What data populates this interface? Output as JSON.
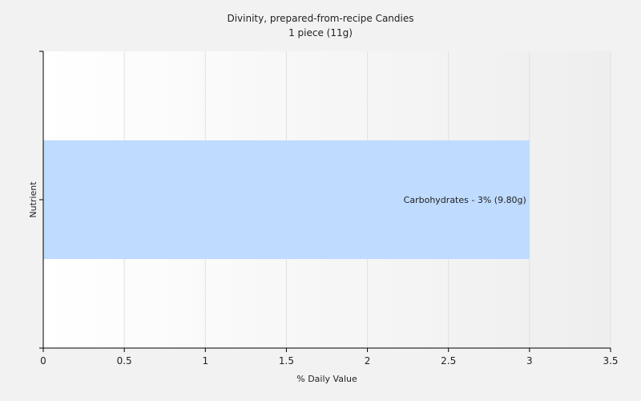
{
  "chart_data": {
    "type": "bar",
    "orientation": "horizontal",
    "title": "Divinity, prepared-from-recipe Candies",
    "subtitle": "1 piece (11g)",
    "xlabel": "% Daily Value",
    "ylabel": "Nutrient",
    "xlim": [
      0,
      3.5
    ],
    "x_ticks": [
      "0",
      "0.5",
      "1",
      "1.5",
      "2",
      "2.5",
      "3",
      "3.5"
    ],
    "grid": true,
    "bars": [
      {
        "category": "Carbohydrates",
        "value": 3,
        "label": "Carbohydrates - 3% (9.80g)"
      }
    ],
    "colors": {
      "bar": "#bfdbff",
      "background": "#f2f2f2",
      "plot_gradient_start": "#ffffff",
      "plot_gradient_end": "#eeeeee",
      "grid": "#e1e1e1",
      "axis": "#000000"
    }
  }
}
